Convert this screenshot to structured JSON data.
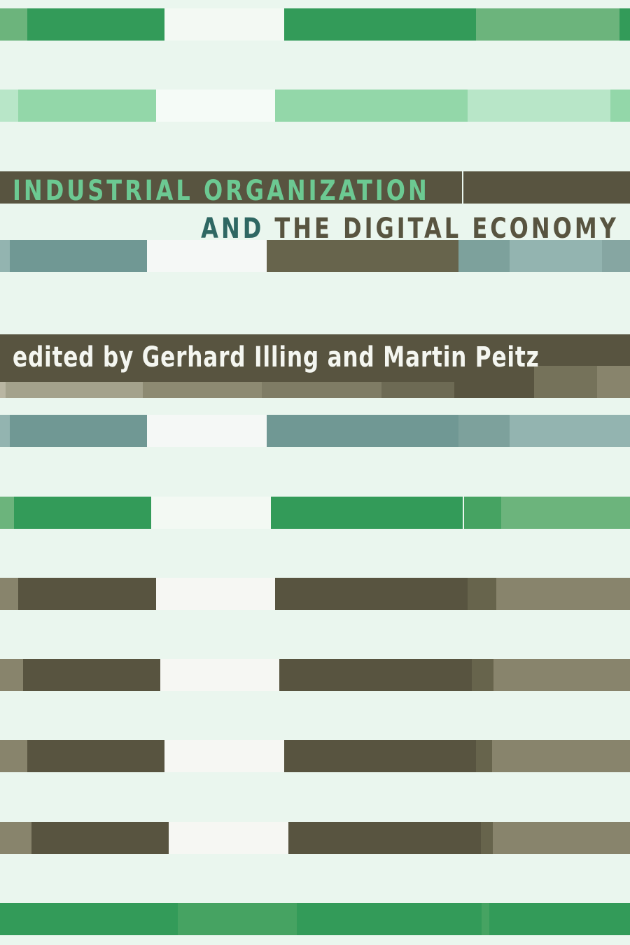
{
  "cover": {
    "title_line1": "INDUSTRIAL ORGANIZATION",
    "title_line2_prefix": "AND",
    "title_line2_rest": "THE DIGITAL ECONOMY",
    "editors": "edited by Gerhard Illing and Martin Peitz"
  },
  "palette": {
    "background": "#eaf6ee",
    "green_dark": "#339b59",
    "green_mid": "#6cb47c",
    "green_light": "#93d7a9",
    "olive_dark": "#585440",
    "olive_light": "#88846c",
    "teal": "#709894",
    "title_green": "#6cc992",
    "title_teal": "#2e6762"
  }
}
